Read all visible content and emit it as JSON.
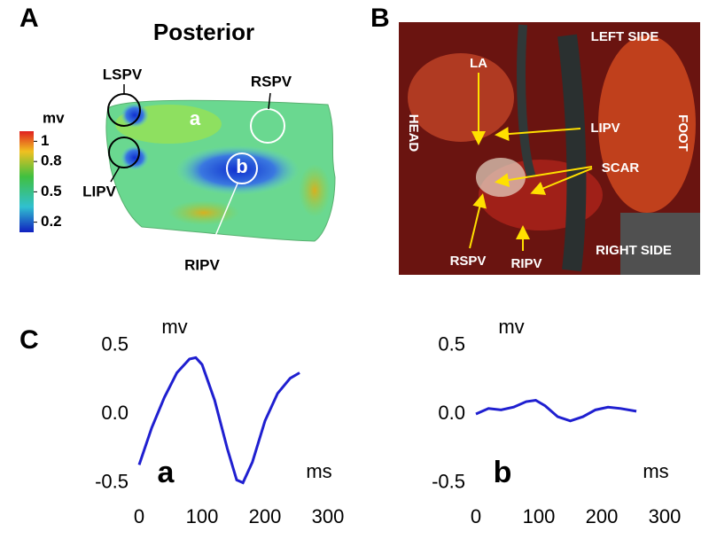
{
  "panels": {
    "A": {
      "label": "A",
      "title": "Posterior",
      "colorbar": {
        "label": "mv",
        "lim": [
          0.1,
          1.1
        ],
        "ticks": [
          1,
          0.8,
          0.5,
          0.2
        ]
      },
      "labels": {
        "lspv": "LSPV",
        "rspv": "RSPV",
        "lipv": "LIPV",
        "ripv": "RIPV",
        "a": "a",
        "b": "b"
      }
    },
    "B": {
      "label": "B",
      "labels": {
        "left_side": "LEFT SIDE",
        "right_side": "RIGHT SIDE",
        "head": "HEAD",
        "foot": "FOOT",
        "la": "LA",
        "lipv": "LIPV",
        "scar": "SCAR",
        "rspv": "RSPV",
        "ripv": "RIPV"
      }
    },
    "C": {
      "label": "C"
    }
  },
  "chart_data": [
    {
      "type": "line",
      "annotation": "a",
      "y_label": "mv",
      "x_label": "ms",
      "color": "#1f1fd0",
      "x": [
        0,
        20,
        40,
        60,
        80,
        90,
        100,
        120,
        140,
        155,
        165,
        180,
        200,
        220,
        240,
        255
      ],
      "values": [
        -0.37,
        -0.1,
        0.12,
        0.3,
        0.4,
        0.41,
        0.36,
        0.1,
        -0.25,
        -0.48,
        -0.5,
        -0.35,
        -0.05,
        0.15,
        0.26,
        0.3
      ],
      "xlim": [
        0,
        300
      ],
      "xticks": [
        0,
        100,
        200,
        300
      ],
      "ylim": [
        -0.6,
        0.6
      ],
      "yticks": [
        0.5,
        {
          "value": 0,
          "label": "0.0"
        },
        -0.5
      ]
    },
    {
      "type": "line",
      "annotation": "b",
      "y_label": "mv",
      "x_label": "ms",
      "color": "#1f1fd0",
      "x": [
        0,
        20,
        40,
        60,
        80,
        95,
        110,
        130,
        150,
        170,
        190,
        210,
        230,
        255
      ],
      "values": [
        0.0,
        0.04,
        0.03,
        0.05,
        0.09,
        0.1,
        0.06,
        -0.02,
        -0.05,
        -0.02,
        0.03,
        0.05,
        0.04,
        0.02
      ],
      "xlim": [
        0,
        300
      ],
      "xticks": [
        0,
        100,
        200,
        300
      ],
      "ylim": [
        -0.6,
        0.6
      ],
      "yticks": [
        0.5,
        {
          "value": 0,
          "label": "0.0"
        },
        -0.5
      ]
    }
  ]
}
